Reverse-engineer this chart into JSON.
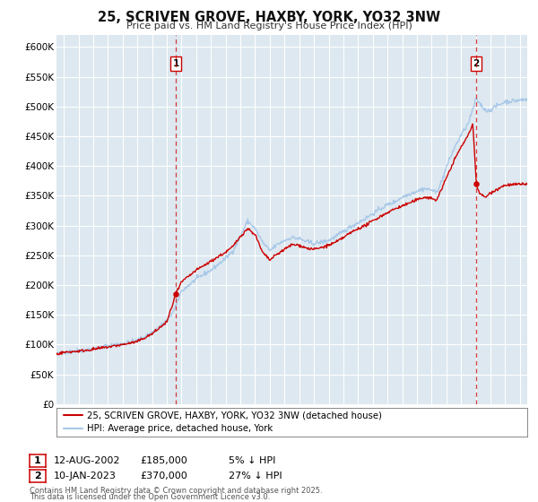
{
  "title": "25, SCRIVEN GROVE, HAXBY, YORK, YO32 3NW",
  "subtitle": "Price paid vs. HM Land Registry's House Price Index (HPI)",
  "fig_bg_color": "#ffffff",
  "plot_bg_color": "#dde8f0",
  "grid_color": "#ffffff",
  "hpi_color": "#a8c8e8",
  "price_color": "#cc0000",
  "legend_label_price": "25, SCRIVEN GROVE, HAXBY, YORK, YO32 3NW (detached house)",
  "legend_label_hpi": "HPI: Average price, detached house, York",
  "footnote1": "Contains HM Land Registry data © Crown copyright and database right 2025.",
  "footnote2": "This data is licensed under the Open Government Licence v3.0.",
  "xmin": 1994.5,
  "xmax": 2026.5,
  "ymin": 0,
  "ymax": 620000,
  "yticks": [
    0,
    50000,
    100000,
    150000,
    200000,
    250000,
    300000,
    350000,
    400000,
    450000,
    500000,
    550000,
    600000
  ],
  "sale1_x": 2002.62,
  "sale1_y": 185000,
  "sale2_x": 2023.04,
  "sale2_y": 370000,
  "ann1_date": "12-AUG-2002",
  "ann1_price": "£185,000",
  "ann1_pct": "5% ↓ HPI",
  "ann2_date": "10-JAN-2023",
  "ann2_price": "£370,000",
  "ann2_pct": "27% ↓ HPI"
}
